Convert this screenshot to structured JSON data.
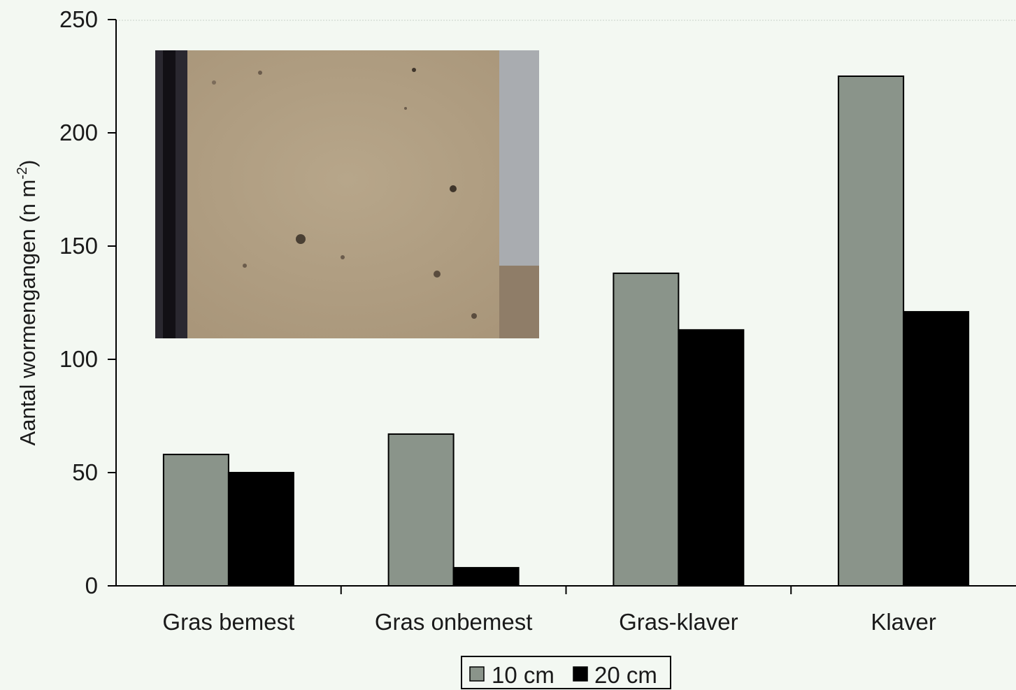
{
  "chart_data": {
    "type": "bar",
    "categories": [
      "Gras bemest",
      "Gras onbemest",
      "Gras-klaver",
      "Klaver"
    ],
    "series": [
      {
        "name": "10 cm",
        "values": [
          58,
          67,
          138,
          225
        ],
        "color": "#8a948a"
      },
      {
        "name": "20 cm",
        "values": [
          50,
          8,
          113,
          121
        ],
        "color": "#000000"
      }
    ],
    "title": "",
    "xlabel": "",
    "ylabel": "Aantal wormengangen (n m",
    "ylabel_sup": "-2",
    "ylabel_close": ")",
    "ylim": [
      0,
      250
    ],
    "yticks": [
      0,
      50,
      100,
      150,
      200,
      250
    ],
    "grid": false,
    "legend_position": "bottom-center",
    "plot_background": "#f3f8f2",
    "inset_image": "soil-surface-photo-with-worm-burrows"
  }
}
